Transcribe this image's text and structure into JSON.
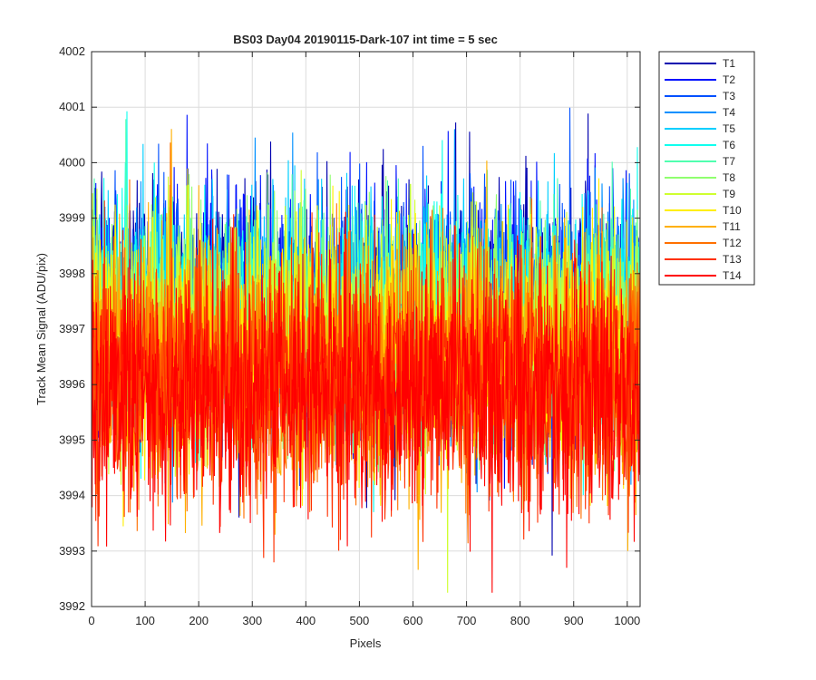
{
  "chart_data": {
    "type": "line",
    "title": "BS03 Day04 20190115-Dark-107 int time = 5 sec",
    "xlabel": "Pixels",
    "ylabel": "Track Mean Signal (ADU/pix)",
    "xlim": [
      0,
      1024
    ],
    "ylim": [
      3992,
      4002
    ],
    "xticks": [
      0,
      100,
      200,
      300,
      400,
      500,
      600,
      700,
      800,
      900,
      1000
    ],
    "yticks": [
      3992,
      3993,
      3994,
      3995,
      3996,
      3997,
      3998,
      3999,
      4000,
      4001,
      4002
    ],
    "grid": true,
    "legend_position": "outside-top-right",
    "colormap": "jet",
    "series": [
      {
        "name": "T1",
        "color": "#0000AF",
        "mean": 3997.4,
        "noise": 1.05
      },
      {
        "name": "T2",
        "color": "#0011FF",
        "mean": 3997.3,
        "noise": 1.05
      },
      {
        "name": "T3",
        "color": "#0050FF",
        "mean": 3997.3,
        "noise": 1.05
      },
      {
        "name": "T4",
        "color": "#0090FF",
        "mean": 3997.2,
        "noise": 1.0
      },
      {
        "name": "T5",
        "color": "#00CFFF",
        "mean": 3997.2,
        "noise": 1.0
      },
      {
        "name": "T6",
        "color": "#10FFEF",
        "mean": 3997.1,
        "noise": 1.0
      },
      {
        "name": "T7",
        "color": "#50FFAF",
        "mean": 3997.0,
        "noise": 1.0
      },
      {
        "name": "T8",
        "color": "#90FF6F",
        "mean": 3997.0,
        "noise": 1.0
      },
      {
        "name": "T9",
        "color": "#CFFF30",
        "mean": 3996.8,
        "noise": 1.05
      },
      {
        "name": "T10",
        "color": "#FFEF00",
        "mean": 3996.6,
        "noise": 1.05
      },
      {
        "name": "T11",
        "color": "#FFB000",
        "mean": 3996.4,
        "noise": 1.1
      },
      {
        "name": "T12",
        "color": "#FF7000",
        "mean": 3996.2,
        "noise": 1.1
      },
      {
        "name": "T13",
        "color": "#FF3000",
        "mean": 3996.0,
        "noise": 1.1
      },
      {
        "name": "T14",
        "color": "#FF0000",
        "mean": 3995.9,
        "noise": 1.1
      }
    ],
    "n_points": 1024
  }
}
